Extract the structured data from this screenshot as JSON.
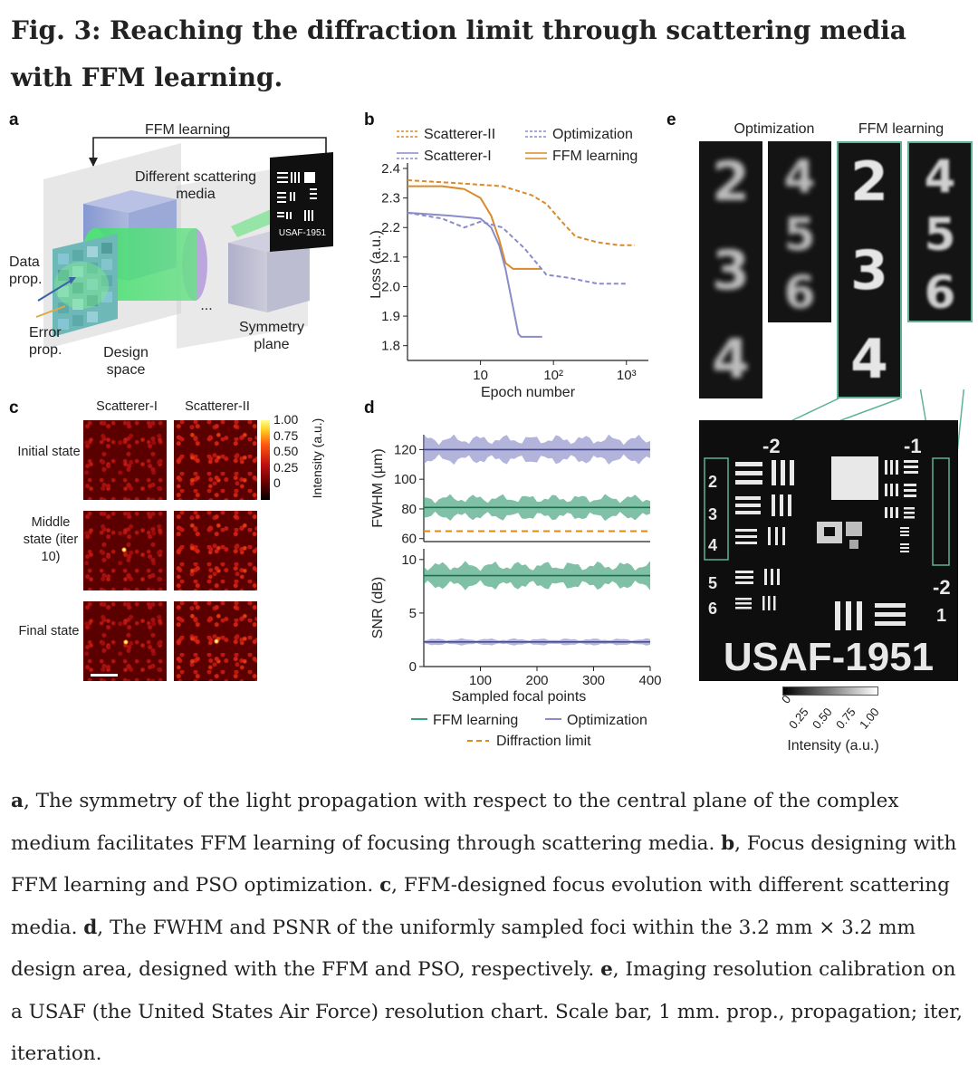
{
  "title": "Fig. 3: Reaching the diffraction limit through scattering media with FFM learning.",
  "panels": {
    "a": {
      "letter": "a",
      "ffm_learning": "FFM learning",
      "different_media": "Different scattering media",
      "data_prop": "Data prop.",
      "error_prop": "Error prop.",
      "design_space": "Design space",
      "symmetry_plane": "Symmetry plane",
      "ellipsis": "...",
      "target_label": "USAF-1951"
    },
    "b": {
      "letter": "b"
    },
    "c": {
      "letter": "c",
      "col1": "Scatterer-I",
      "col2": "Scatterer-II",
      "row1": "Initial state",
      "row2": "Middle state (iter 10)",
      "row3": "Final state",
      "colorbar_ticks": [
        "1.00",
        "0.75",
        "0.50",
        "0.25",
        "0"
      ],
      "colorbar_label": "Intensity (a.u.)"
    },
    "d": {
      "letter": "d",
      "legend_ffm": "FFM learning",
      "legend_opt": "Optimization",
      "legend_diff": "Diffraction limit"
    },
    "e": {
      "letter": "e",
      "col_opt": "Optimization",
      "col_ffm": "FFM learning",
      "opt_digits_1": [
        "2",
        "3",
        "4"
      ],
      "opt_digits_2": [
        "4",
        "5",
        "6"
      ],
      "ffm_digits_1": [
        "2",
        "3",
        "4"
      ],
      "ffm_digits_2": [
        "4",
        "5",
        "6"
      ],
      "usaf_text": "USAF-1951",
      "group_neg2": "-2",
      "group_neg1": "-1",
      "elements_left": [
        "2",
        "3",
        "4",
        "5",
        "6"
      ],
      "right_neg2": "-2",
      "right_1": "1",
      "colorbar_ticks": [
        "0",
        "0.25",
        "0.50",
        "0.75",
        "1.00"
      ],
      "colorbar_label": "Intensity (a.u.)"
    }
  },
  "chart_data": [
    {
      "type": "line",
      "panel": "b",
      "xlabel": "Epoch number",
      "ylabel": "Loss (a.u.)",
      "xscale": "log",
      "xlim": [
        1,
        2000
      ],
      "ylim": [
        1.75,
        2.4
      ],
      "x_ticks": [
        "10",
        "10²",
        "10³"
      ],
      "y_ticks": [
        "2.4",
        "2.3",
        "2.2",
        "2.1",
        "2.0",
        "1.9",
        "1.8"
      ],
      "legend": [
        "Scatterer-II",
        "Optimization",
        "Scatterer-I",
        "FFM learning"
      ],
      "legend_position": "top",
      "series": [
        {
          "name": "Scatterer-II FFM learning",
          "color": "#d98a2b",
          "dash": "solid",
          "x": [
            1,
            3,
            6,
            10,
            14,
            18,
            22,
            28,
            35,
            50,
            70
          ],
          "y": [
            2.34,
            2.34,
            2.33,
            2.3,
            2.24,
            2.16,
            2.08,
            2.06,
            2.06,
            2.06,
            2.06
          ]
        },
        {
          "name": "Scatterer-II Optimization",
          "color": "#d98a2b",
          "dash": "dashed",
          "x": [
            1,
            5,
            20,
            50,
            80,
            130,
            200,
            400,
            800,
            1300
          ],
          "y": [
            2.36,
            2.35,
            2.34,
            2.31,
            2.28,
            2.22,
            2.17,
            2.15,
            2.14,
            2.14
          ]
        },
        {
          "name": "Scatterer-I FFM learning",
          "color": "#8b8cc7",
          "dash": "solid",
          "x": [
            1,
            4,
            10,
            14,
            18,
            22,
            27,
            33,
            36,
            45,
            70
          ],
          "y": [
            2.25,
            2.24,
            2.23,
            2.2,
            2.14,
            2.06,
            1.95,
            1.84,
            1.83,
            1.83,
            1.83
          ]
        },
        {
          "name": "Scatterer-I Optimization",
          "color": "#8b8cc7",
          "dash": "dashed",
          "x": [
            1,
            3,
            6,
            10,
            20,
            40,
            80,
            160,
            400,
            1000
          ],
          "y": [
            2.25,
            2.23,
            2.2,
            2.22,
            2.2,
            2.13,
            2.04,
            2.03,
            2.01,
            2.01
          ]
        }
      ]
    },
    {
      "type": "line",
      "panel": "d-top",
      "xlabel": "",
      "ylabel": "FWHM (µm)",
      "xlim": [
        0,
        400
      ],
      "ylim": [
        58,
        130
      ],
      "y_ticks": [
        "120",
        "100",
        "80",
        "60"
      ],
      "series": [
        {
          "name": "Optimization",
          "color": "#8b8cc7",
          "mean": 120,
          "band": 9
        },
        {
          "name": "FFM learning",
          "color": "#3a9e78",
          "mean": 81,
          "band": 8
        },
        {
          "name": "Diffraction limit",
          "color": "#e08a1e",
          "dash": "dashed",
          "mean": 65
        }
      ]
    },
    {
      "type": "line",
      "panel": "d-bottom",
      "xlabel": "Sampled focal points",
      "ylabel": "SNR (dB)",
      "xlim": [
        0,
        400
      ],
      "ylim": [
        0,
        11
      ],
      "x_ticks": [
        "100",
        "200",
        "300",
        "400"
      ],
      "y_ticks": [
        "10",
        "5",
        "0"
      ],
      "series": [
        {
          "name": "FFM learning",
          "color": "#3a9e78",
          "mean": 8.5,
          "band": 1.2
        },
        {
          "name": "Optimization",
          "color": "#8b8cc7",
          "mean": 2.3,
          "band": 0.3
        }
      ]
    }
  ],
  "caption": {
    "a_letter": "a",
    "a_text": ", The symmetry of the light propagation with respect to the central plane of the complex medium facilitates FFM learning of focusing through scattering media. ",
    "b_letter": "b",
    "b_text": ", Focus designing with FFM learning and PSO optimization. ",
    "c_letter": "c",
    "c_text": ", FFM-designed focus evolution with different scattering media. ",
    "d_letter": "d",
    "d_text": ", The FWHM and PSNR of the uniformly sampled foci within the 3.2 mm × 3.2 mm design area, designed with the FFM and PSO, respectively. ",
    "e_letter": "e",
    "e_text": ", Imaging resolution calibration on a USAF (the United States Air Force) resolution chart. Scale bar, 1 mm. prop., propagation; iter, iteration."
  }
}
